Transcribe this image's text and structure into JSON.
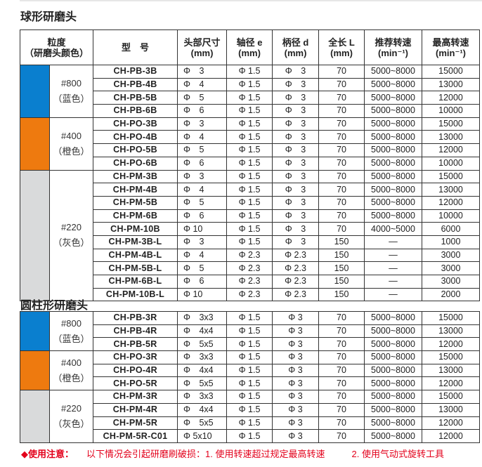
{
  "section1": {
    "title": "球形研磨头",
    "headers": [
      "粒度\n（研磨头颜色）",
      "型　号",
      "头部尺寸\n(mm)",
      "轴径 e\n(mm)",
      "柄径 d\n(mm)",
      "全长 L\n(mm)",
      "推荐转速\n(min⁻¹)",
      "最高转速\n(min⁻¹)"
    ],
    "groups": [
      {
        "grit": "#800",
        "color_name": "（蓝色）",
        "color": "#0a7fcf",
        "rows": [
          [
            "CH-PB-3B",
            "Φ　3",
            "Φ 1.5",
            "Φ　3",
            "70",
            "5000~8000",
            "15000"
          ],
          [
            "CH-PB-4B",
            "Φ　4",
            "Φ 1.5",
            "Φ　3",
            "70",
            "5000~8000",
            "13000"
          ],
          [
            "CH-PB-5B",
            "Φ　5",
            "Φ 1.5",
            "Φ　3",
            "70",
            "5000~8000",
            "12000"
          ],
          [
            "CH-PB-6B",
            "Φ　6",
            "Φ 1.5",
            "Φ　3",
            "70",
            "5000~8000",
            "10000"
          ]
        ]
      },
      {
        "grit": "#400",
        "color_name": "（橙色）",
        "color": "#ee7a0f",
        "rows": [
          [
            "CH-PO-3B",
            "Φ　3",
            "Φ 1.5",
            "Φ　3",
            "70",
            "5000~8000",
            "15000"
          ],
          [
            "CH-PO-4B",
            "Φ　4",
            "Φ 1.5",
            "Φ　3",
            "70",
            "5000~8000",
            "13000"
          ],
          [
            "CH-PO-5B",
            "Φ　5",
            "Φ 1.5",
            "Φ　3",
            "70",
            "5000~8000",
            "12000"
          ],
          [
            "CH-PO-6B",
            "Φ　6",
            "Φ 1.5",
            "Φ　3",
            "70",
            "5000~8000",
            "10000"
          ]
        ]
      },
      {
        "grit": "#220",
        "color_name": "（灰色）",
        "color": "#d9dadb",
        "rows": [
          [
            "CH-PM-3B",
            "Φ　3",
            "Φ 1.5",
            "Φ　3",
            "70",
            "5000~8000",
            "15000"
          ],
          [
            "CH-PM-4B",
            "Φ　4",
            "Φ 1.5",
            "Φ　3",
            "70",
            "5000~8000",
            "13000"
          ],
          [
            "CH-PM-5B",
            "Φ　5",
            "Φ 1.5",
            "Φ　3",
            "70",
            "5000~8000",
            "12000"
          ],
          [
            "CH-PM-6B",
            "Φ　6",
            "Φ 1.5",
            "Φ　3",
            "70",
            "5000~8000",
            "10000"
          ],
          [
            "CH-PM-10B",
            "Φ 10",
            "Φ 1.5",
            "Φ　3",
            "70",
            "4000~5000",
            "6000"
          ],
          [
            "CH-PM-3B-L",
            "Φ　3",
            "Φ 1.5",
            "Φ　3",
            "150",
            "—",
            "1000"
          ],
          [
            "CH-PM-4B-L",
            "Φ　4",
            "Φ 2.3",
            "Φ 2.3",
            "150",
            "—",
            "3000"
          ],
          [
            "CH-PM-5B-L",
            "Φ　5",
            "Φ 2.3",
            "Φ 2.3",
            "150",
            "—",
            "3000"
          ],
          [
            "CH-PM-6B-L",
            "Φ　6",
            "Φ 2.3",
            "Φ 2.3",
            "150",
            "—",
            "3000"
          ],
          [
            "CH-PM-10B-L",
            "Φ 10",
            "Φ 2.3",
            "Φ 2.3",
            "150",
            "—",
            "2000"
          ]
        ]
      }
    ]
  },
  "section2": {
    "title": "圆柱形研磨头",
    "groups": [
      {
        "grit": "#800",
        "color_name": "（蓝色）",
        "color": "#0a7fcf",
        "rows": [
          [
            "CH-PB-3R",
            "Φ　3x3",
            "Φ 1.5",
            "Φ 3",
            "70",
            "5000~8000",
            "15000"
          ],
          [
            "CH-PB-4R",
            "Φ　4x4",
            "Φ 1.5",
            "Φ 3",
            "70",
            "5000~8000",
            "13000"
          ],
          [
            "CH-PB-5R",
            "Φ　5x5",
            "Φ 1.5",
            "Φ 3",
            "70",
            "5000~8000",
            "12000"
          ]
        ]
      },
      {
        "grit": "#400",
        "color_name": "（橙色）",
        "color": "#ee7a0f",
        "rows": [
          [
            "CH-PO-3R",
            "Φ　3x3",
            "Φ 1.5",
            "Φ 3",
            "70",
            "5000~8000",
            "15000"
          ],
          [
            "CH-PO-4R",
            "Φ　4x4",
            "Φ 1.5",
            "Φ 3",
            "70",
            "5000~8000",
            "13000"
          ],
          [
            "CH-PO-5R",
            "Φ　5x5",
            "Φ 1.5",
            "Φ 3",
            "70",
            "5000~8000",
            "12000"
          ]
        ]
      },
      {
        "grit": "#220",
        "color_name": "（灰色）",
        "color": "#d9dadb",
        "rows": [
          [
            "CH-PM-3R",
            "Φ　3x3",
            "Φ 1.5",
            "Φ 3",
            "70",
            "5000~8000",
            "15000"
          ],
          [
            "CH-PM-4R",
            "Φ　4x4",
            "Φ 1.5",
            "Φ 3",
            "70",
            "5000~8000",
            "13000"
          ],
          [
            "CH-PM-5R",
            "Φ　5x5",
            "Φ 1.5",
            "Φ 3",
            "70",
            "5000~8000",
            "12000"
          ],
          [
            "CH-PM-5R-C01",
            "Φ 5x10",
            "Φ 1.5",
            "Φ 3",
            "70",
            "5000~8000",
            "12000"
          ]
        ]
      }
    ]
  },
  "note": {
    "bullet": "◆",
    "label": "使用注意：",
    "text1": "以下情况会引起研磨刷破损：1. 使用转速超过规定最高转速",
    "text2": "2. 使用气动式旋转工具"
  }
}
